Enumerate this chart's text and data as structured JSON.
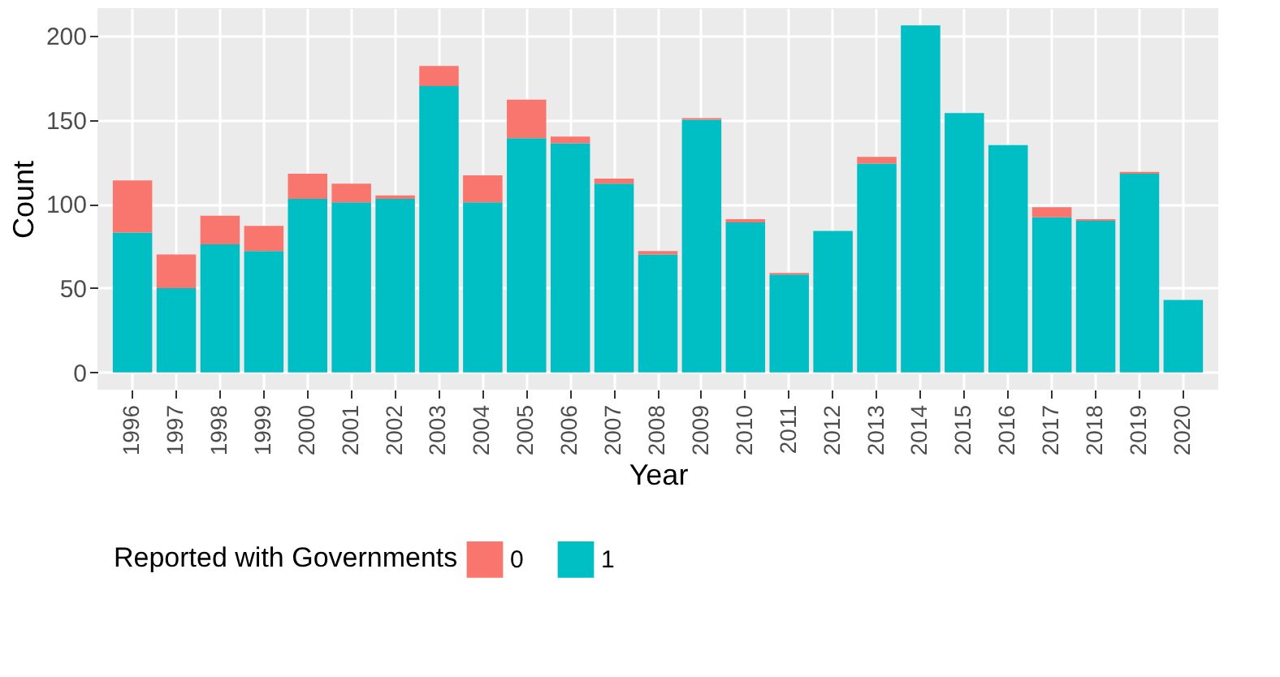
{
  "chart_data": {
    "type": "bar",
    "stacked": true,
    "xlabel": "Year",
    "ylabel": "Count",
    "legend_title": "Reported with Governments",
    "legend": "bottom",
    "grid": true,
    "categories": [
      "1996",
      "1997",
      "1998",
      "1999",
      "2000",
      "2001",
      "2002",
      "2003",
      "2004",
      "2005",
      "2006",
      "2007",
      "2008",
      "2009",
      "2010",
      "2011",
      "2012",
      "2013",
      "2014",
      "2015",
      "2016",
      "2017",
      "2018",
      "2019",
      "2020"
    ],
    "series": [
      {
        "name": "1",
        "color": "#00bfc4",
        "values": [
          83,
          50,
          76,
          72,
          103,
          101,
          103,
          170,
          101,
          139,
          136,
          112,
          70,
          150,
          89,
          58,
          84,
          124,
          206,
          154,
          135,
          92,
          90,
          118,
          43
        ]
      },
      {
        "name": "0",
        "color": "#f8766d",
        "values": [
          31,
          20,
          17,
          15,
          15,
          11,
          2,
          12,
          16,
          23,
          4,
          3,
          2,
          1,
          2,
          1,
          0,
          4,
          0,
          0,
          0,
          6,
          1,
          1,
          0
        ]
      }
    ],
    "ylim": [
      -10.3,
      216.3
    ],
    "yticks": [
      0,
      50,
      100,
      150,
      200
    ]
  }
}
